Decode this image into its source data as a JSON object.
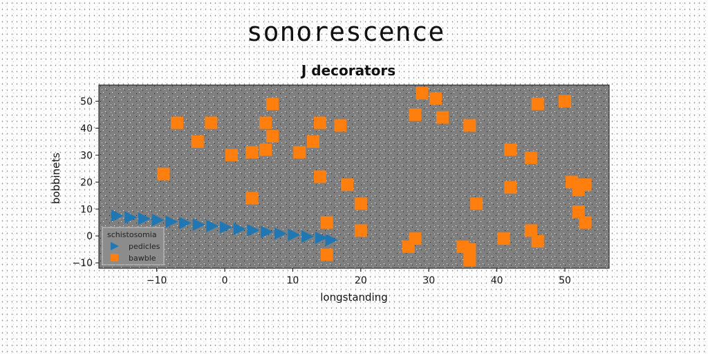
{
  "suptitle": "sonorescence",
  "chart_data": {
    "type": "scatter",
    "title": "J decorators",
    "xlabel": "longstanding",
    "ylabel": "bobbinets",
    "xlim": [
      -18.5,
      56.5
    ],
    "ylim": [
      -12,
      56
    ],
    "xticks": [
      -10,
      0,
      10,
      20,
      30,
      40,
      50
    ],
    "yticks": [
      -10,
      0,
      10,
      20,
      30,
      40,
      50
    ],
    "grid": false,
    "legend": {
      "title": "schistosomia",
      "location": "lower-left"
    },
    "colors": {
      "plot_bg": "#7f7f7f",
      "pedicles": "#1f77b4",
      "bawble": "#ff7f0e"
    },
    "series": [
      {
        "name": "pedicles",
        "marker": "triangle-right",
        "x": [
          -16,
          -14,
          -12,
          -10,
          -8,
          -6,
          -4,
          -2,
          0,
          2,
          4,
          6,
          8,
          10,
          12,
          14,
          15.5
        ],
        "y": [
          7.5,
          6.9,
          6.4,
          5.9,
          5.3,
          4.8,
          4.2,
          3.7,
          3.2,
          2.6,
          2.1,
          1.5,
          0.9,
          0.4,
          -0.2,
          -0.7,
          -1.5
        ]
      },
      {
        "name": "bawble",
        "marker": "square",
        "points": [
          [
            -9,
            23
          ],
          [
            -7,
            42
          ],
          [
            -4,
            35
          ],
          [
            -2,
            42
          ],
          [
            1,
            30
          ],
          [
            4,
            31
          ],
          [
            4,
            14
          ],
          [
            6,
            32
          ],
          [
            6,
            42
          ],
          [
            7,
            37
          ],
          [
            7,
            49
          ],
          [
            11,
            31
          ],
          [
            13,
            35
          ],
          [
            14,
            42
          ],
          [
            14,
            22
          ],
          [
            15,
            5
          ],
          [
            15,
            -7
          ],
          [
            17,
            41
          ],
          [
            18,
            19
          ],
          [
            20,
            12
          ],
          [
            20,
            2
          ],
          [
            27,
            -4
          ],
          [
            28,
            45
          ],
          [
            28,
            -1
          ],
          [
            29,
            53
          ],
          [
            31,
            51
          ],
          [
            32,
            44
          ],
          [
            35,
            -4
          ],
          [
            36,
            -5
          ],
          [
            36,
            -9
          ],
          [
            36,
            41
          ],
          [
            37,
            12
          ],
          [
            41,
            -1
          ],
          [
            42,
            32
          ],
          [
            42,
            18
          ],
          [
            45,
            29
          ],
          [
            45,
            2
          ],
          [
            46,
            49
          ],
          [
            46,
            -2
          ],
          [
            50,
            50
          ],
          [
            51,
            20
          ],
          [
            52,
            19
          ],
          [
            52,
            17
          ],
          [
            53,
            19
          ],
          [
            52,
            9
          ],
          [
            53,
            5
          ]
        ]
      }
    ]
  }
}
